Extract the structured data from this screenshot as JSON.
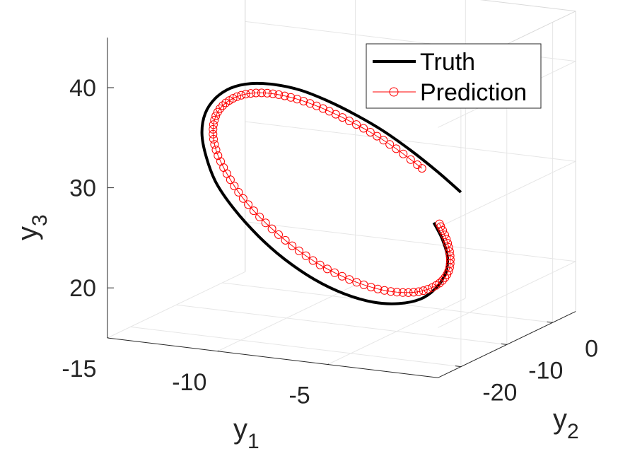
{
  "chart_data": {
    "type": "line-3d",
    "title": "",
    "axes": {
      "x": {
        "label": "y",
        "subscript": "1",
        "range": [
          -15,
          0
        ],
        "ticks": [
          "-15",
          "-10",
          "-5"
        ]
      },
      "y": {
        "label": "y",
        "subscript": "2",
        "range": [
          -25,
          5
        ],
        "ticks": [
          "-20",
          "-10",
          "0"
        ]
      },
      "z": {
        "label": "y",
        "subscript": "3",
        "range": [
          15,
          45
        ],
        "ticks": [
          "20",
          "30",
          "40"
        ]
      }
    },
    "grid": true,
    "legend": {
      "placement": "top-right",
      "entries": [
        "Truth",
        "Prediction"
      ]
    },
    "series": [
      {
        "name": "Truth",
        "color": "#000000",
        "marker": "none",
        "trajectory": "spiral-decaying",
        "points": [
          [
            -3.5,
            -3.2,
            27.8
          ],
          [
            -4.3,
            -4.6,
            30.0
          ],
          [
            -5.2,
            -5.9,
            32.1
          ],
          [
            -6.2,
            -7.2,
            34.1
          ],
          [
            -7.2,
            -8.6,
            35.8
          ],
          [
            -8.2,
            -9.9,
            37.2
          ],
          [
            -9.1,
            -11.3,
            38.3
          ],
          [
            -10.0,
            -12.6,
            38.9
          ],
          [
            -10.8,
            -14.0,
            39.1
          ],
          [
            -11.4,
            -15.4,
            38.8
          ],
          [
            -11.8,
            -16.8,
            38.0
          ],
          [
            -12.0,
            -18.1,
            36.7
          ],
          [
            -11.9,
            -19.3,
            35.0
          ],
          [
            -11.5,
            -20.3,
            33.0
          ],
          [
            -10.9,
            -21.0,
            30.7
          ],
          [
            -10.0,
            -21.4,
            28.4
          ],
          [
            -8.9,
            -21.4,
            26.0
          ],
          [
            -7.8,
            -21.0,
            23.9
          ],
          [
            -6.6,
            -20.2,
            22.0
          ],
          [
            -5.5,
            -19.0,
            20.6
          ],
          [
            -4.5,
            -17.5,
            19.7
          ],
          [
            -3.7,
            -15.8,
            19.4
          ],
          [
            -3.1,
            -14.0,
            19.6
          ],
          [
            -2.8,
            -12.2,
            20.3
          ],
          [
            -2.7,
            -10.5,
            21.4
          ],
          [
            -2.9,
            -9.0,
            22.7
          ],
          [
            -3.4,
            -7.7,
            24.1
          ],
          [
            -4.0,
            -6.7,
            25.4
          ]
        ]
      },
      {
        "name": "Prediction",
        "color": "#ff0000",
        "marker": "o",
        "trajectory": "spiral-decaying",
        "points": [
          [
            -4.6,
            -6.4,
            30.6
          ],
          [
            -5.5,
            -7.7,
            32.6
          ],
          [
            -6.4,
            -9.0,
            34.3
          ],
          [
            -7.4,
            -10.3,
            35.8
          ],
          [
            -8.3,
            -11.6,
            37.0
          ],
          [
            -9.2,
            -12.9,
            37.9
          ],
          [
            -10.0,
            -14.2,
            38.4
          ],
          [
            -10.7,
            -15.5,
            38.4
          ],
          [
            -11.2,
            -16.7,
            37.9
          ],
          [
            -11.5,
            -17.8,
            36.9
          ],
          [
            -11.5,
            -18.8,
            35.4
          ],
          [
            -11.2,
            -19.6,
            33.6
          ],
          [
            -10.6,
            -20.1,
            31.5
          ],
          [
            -9.8,
            -20.4,
            29.3
          ],
          [
            -8.8,
            -20.3,
            27.1
          ],
          [
            -7.7,
            -19.8,
            25.0
          ],
          [
            -6.6,
            -19.0,
            23.2
          ],
          [
            -5.5,
            -17.9,
            21.8
          ],
          [
            -4.5,
            -16.5,
            20.8
          ],
          [
            -3.7,
            -14.9,
            20.3
          ],
          [
            -3.1,
            -13.3,
            20.3
          ],
          [
            -2.7,
            -11.7,
            20.8
          ],
          [
            -2.6,
            -10.2,
            21.7
          ],
          [
            -2.8,
            -8.9,
            22.9
          ],
          [
            -3.2,
            -7.8,
            24.2
          ],
          [
            -3.7,
            -6.9,
            25.4
          ]
        ]
      }
    ]
  }
}
